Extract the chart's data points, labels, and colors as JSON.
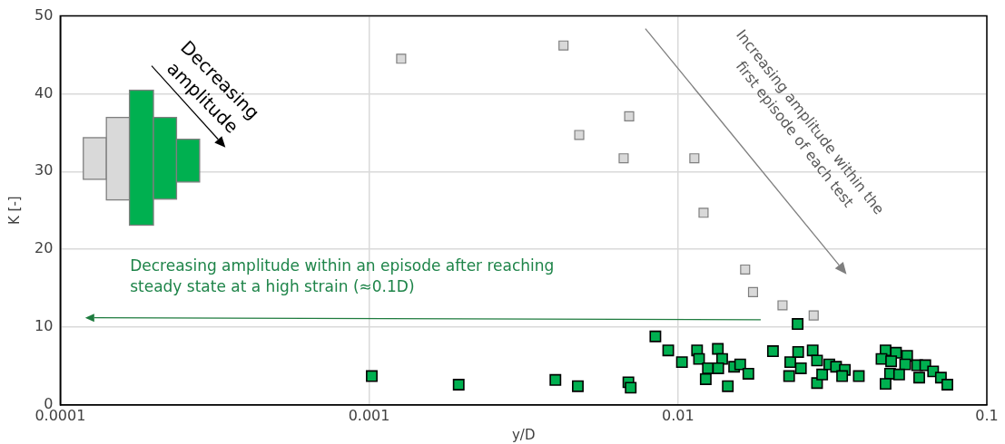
{
  "chart_data": {
    "type": "scatter",
    "xlabel": "y/D",
    "ylabel": "K [-]",
    "log": "x",
    "xlim": [
      0.0001,
      0.1
    ],
    "xticks": [
      0.0001,
      0.001,
      0.01,
      0.1
    ],
    "ylim": [
      0,
      50
    ],
    "yticks": [
      0,
      10,
      20,
      30,
      40,
      50
    ],
    "grid": true,
    "legend": false,
    "marker": "square",
    "annotations": [
      "Decreasing amplitude",
      "Increasing amplitude within the first episode of each test",
      "Decreasing amplitude within an episode after reaching steady state at a high strain (≈0.1D)"
    ],
    "series": [
      {
        "color": "#d9d9d9",
        "x": [
          0.00127,
          0.00426,
          0.00479,
          0.00695,
          0.00667,
          0.0113,
          0.0121,
          0.0165,
          0.0175,
          0.0218,
          0.0275
        ],
        "values": [
          44.5,
          46.2,
          34.7,
          37.1,
          31.7,
          31.7,
          24.7,
          17.4,
          14.5,
          12.8,
          11.5
        ]
      },
      {
        "color": "#00b050",
        "x": [
          0.00102,
          0.00195,
          0.00401,
          0.00474,
          0.00691,
          0.00703,
          0.00845,
          0.0093,
          0.0103,
          0.01153,
          0.0117,
          0.01346,
          0.0139,
          0.0125,
          0.0123,
          0.0135,
          0.0145,
          0.0152,
          0.0159,
          0.0163,
          0.0169,
          0.0203,
          0.0244,
          0.0231,
          0.0229,
          0.025,
          0.0245,
          0.0273,
          0.0282,
          0.0282,
          0.0293,
          0.0309,
          0.0325,
          0.0347,
          0.034,
          0.0385,
          0.047,
          0.0508,
          0.0456,
          0.0552,
          0.0544,
          0.0486,
          0.047,
          0.052,
          0.0595,
          0.0632,
          0.0604,
          0.067,
          0.071,
          0.0745,
          0.049
        ],
        "values": [
          3.7,
          2.6,
          3.2,
          2.4,
          2.9,
          2.2,
          8.8,
          7.0,
          5.5,
          7.0,
          5.9,
          7.2,
          5.9,
          4.7,
          3.3,
          4.7,
          2.4,
          4.9,
          5.2,
          null,
          4.0,
          6.9,
          10.4,
          5.5,
          3.7,
          4.7,
          6.8,
          7.0,
          5.7,
          2.8,
          3.9,
          5.2,
          4.9,
          4.5,
          3.7,
          3.7,
          7.0,
          6.7,
          5.9,
          6.3,
          5.2,
          4.0,
          2.7,
          3.9,
          5.1,
          5.1,
          3.5,
          4.3,
          3.5,
          2.6,
          5.6
        ]
      }
    ]
  }
}
